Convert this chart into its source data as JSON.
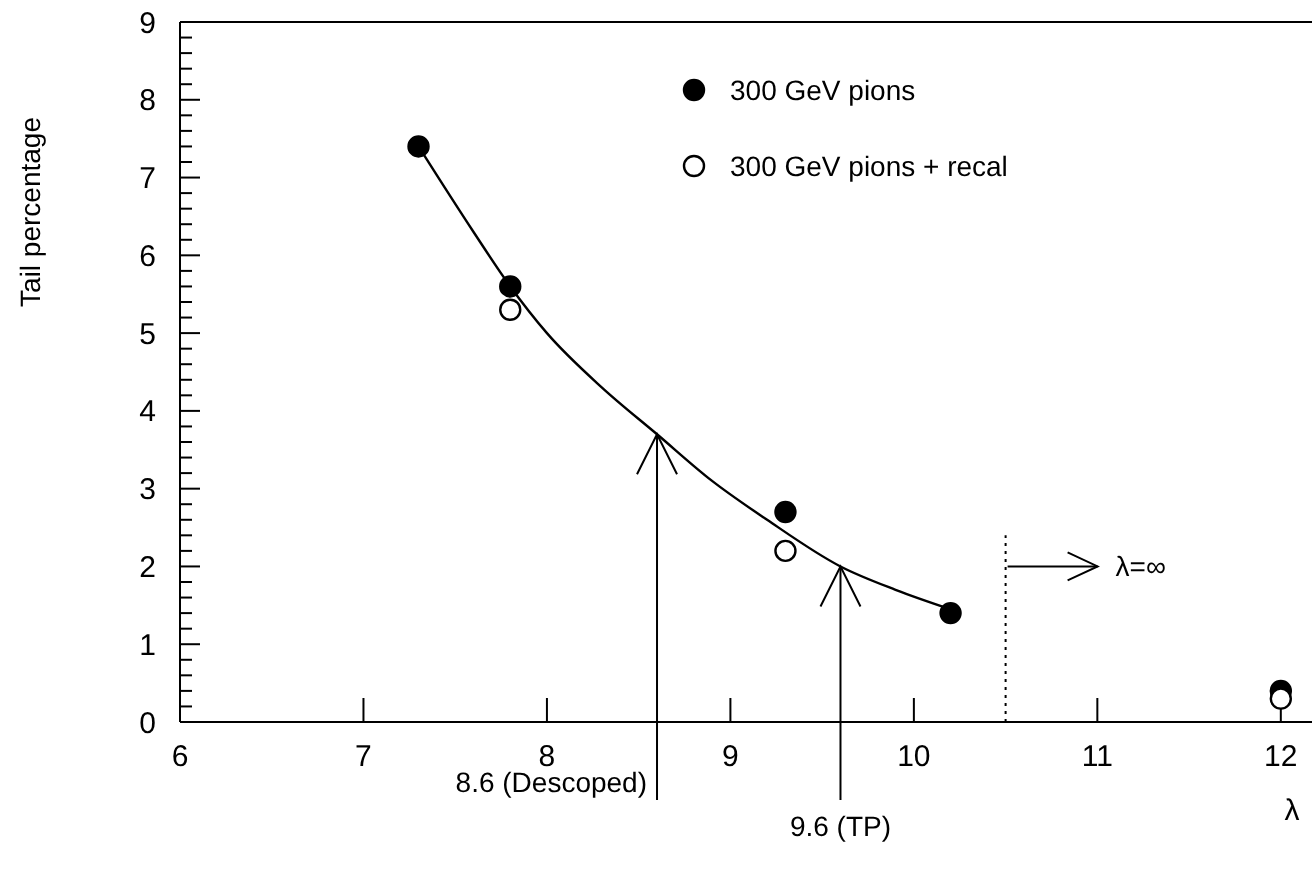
{
  "chart_data": {
    "type": "scatter",
    "xlabel": "λ",
    "ylabel": "Tail percentage",
    "xlim": [
      6,
      12.17
    ],
    "ylim": [
      0,
      9
    ],
    "xticks": [
      6,
      7,
      8,
      9,
      10,
      11,
      12
    ],
    "yticks": [
      0,
      1,
      2,
      3,
      4,
      5,
      6,
      7,
      8,
      9
    ],
    "marker": "circle",
    "legend": "top right",
    "series": [
      {
        "name": "300 GeV pions",
        "color": "#000000",
        "x": [
          7.3,
          7.8,
          9.3,
          10.2,
          12
        ],
        "values": [
          7.4,
          5.6,
          2.7,
          1.4,
          0.4
        ]
      },
      {
        "name": "300 GeV pions + recal",
        "color": "#ffffff",
        "x": [
          7.8,
          9.3,
          12
        ],
        "values": [
          5.3,
          2.2,
          0.3
        ]
      },
      {
        "type": "line",
        "color": "#000000",
        "marker": "none",
        "x": [
          7.3,
          7.6,
          7.8,
          8.0,
          8.3,
          8.6,
          8.9,
          9.2,
          9.6,
          9.9,
          10.2
        ],
        "values": [
          7.4,
          6.3,
          5.6,
          5.0,
          4.3,
          3.7,
          3.1,
          2.6,
          2.0,
          1.7,
          1.45
        ]
      }
    ],
    "ref_lines": [
      {
        "axis": "x",
        "value": 10.5,
        "label": "λ=∞",
        "line_style": "dotted",
        "color": "#000000"
      }
    ],
    "annotations": [
      {
        "text": "8.6 (Descoped)",
        "x": 8.6,
        "y": 3.7
      },
      {
        "text": "9.6 (TP)",
        "x": 9.6,
        "y": 2.0
      }
    ]
  }
}
